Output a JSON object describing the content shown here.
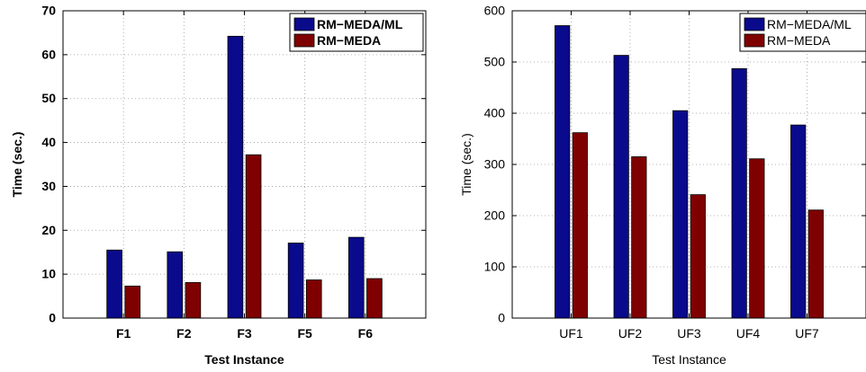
{
  "chart_data": [
    {
      "type": "bar",
      "categories": [
        "F1",
        "F2",
        "F3",
        "F5",
        "F6"
      ],
      "series": [
        {
          "name": "RM−MEDA/ML",
          "values": [
            15.5,
            15.1,
            64.2,
            17.1,
            18.4
          ],
          "color": "#0a0a8c"
        },
        {
          "name": "RM−MEDA",
          "values": [
            7.3,
            8.1,
            37.2,
            8.7,
            9.0
          ],
          "color": "#7f0000"
        }
      ],
      "title": "",
      "xlabel": "Test Instance",
      "ylabel": "Time (sec.)",
      "ylim": [
        0,
        70
      ],
      "yticks": [
        0,
        10,
        20,
        30,
        40,
        50,
        60,
        70
      ],
      "grid": true,
      "legend": "top-right"
    },
    {
      "type": "bar",
      "categories": [
        "UF1",
        "UF2",
        "UF3",
        "UF4",
        "UF7"
      ],
      "series": [
        {
          "name": "RM−MEDA/ML",
          "values": [
            571,
            513,
            405,
            487,
            377
          ],
          "color": "#0a0a8c"
        },
        {
          "name": "RM−MEDA",
          "values": [
            362,
            315,
            241,
            311,
            211
          ],
          "color": "#7f0000"
        }
      ],
      "title": "",
      "xlabel": "Test Instance",
      "ylabel": "Time (sec.)",
      "ylim": [
        0,
        600
      ],
      "yticks": [
        0,
        100,
        200,
        300,
        400,
        500,
        600
      ],
      "grid": true,
      "legend": "top-right"
    }
  ]
}
